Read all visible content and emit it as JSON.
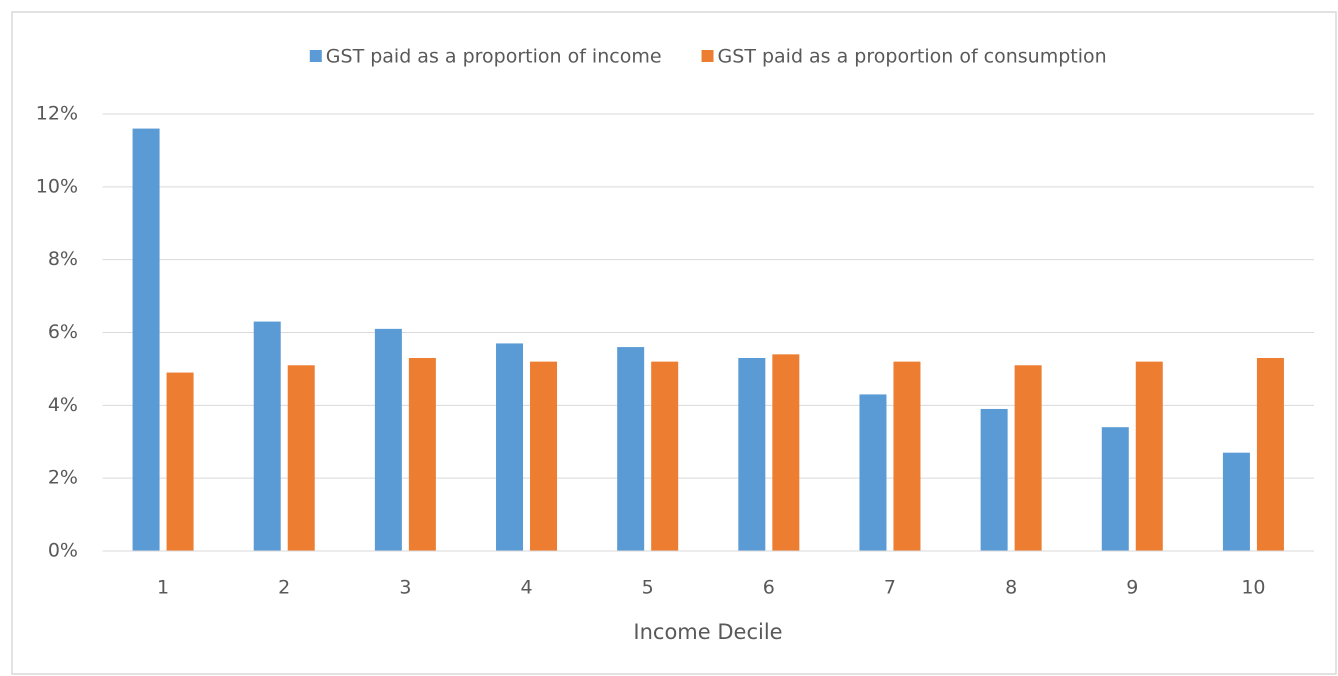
{
  "chart_data": {
    "type": "bar",
    "x_label": "Income Decile",
    "categories": [
      "1",
      "2",
      "3",
      "4",
      "5",
      "6",
      "7",
      "8",
      "9",
      "10"
    ],
    "series": [
      {
        "name": "GST paid as a proportion of income",
        "color": "#5b9bd5",
        "values": [
          11.6,
          6.3,
          6.1,
          5.7,
          5.6,
          5.3,
          4.3,
          3.9,
          3.4,
          2.7
        ]
      },
      {
        "name": "GST paid as a proportion of consumption",
        "color": "#ed7d31",
        "values": [
          4.9,
          5.1,
          5.3,
          5.2,
          5.2,
          5.4,
          5.2,
          5.1,
          5.2,
          5.3
        ]
      }
    ],
    "ylim": [
      0,
      12
    ],
    "yticks": [
      {
        "value": 0,
        "label": "0%"
      },
      {
        "value": 2,
        "label": "2%"
      },
      {
        "value": 4,
        "label": "4%"
      },
      {
        "value": 6,
        "label": "6%"
      },
      {
        "value": 8,
        "label": "8%"
      },
      {
        "value": 10,
        "label": "10%"
      },
      {
        "value": 12,
        "label": "12%"
      }
    ],
    "grid": true,
    "legend": "top"
  }
}
